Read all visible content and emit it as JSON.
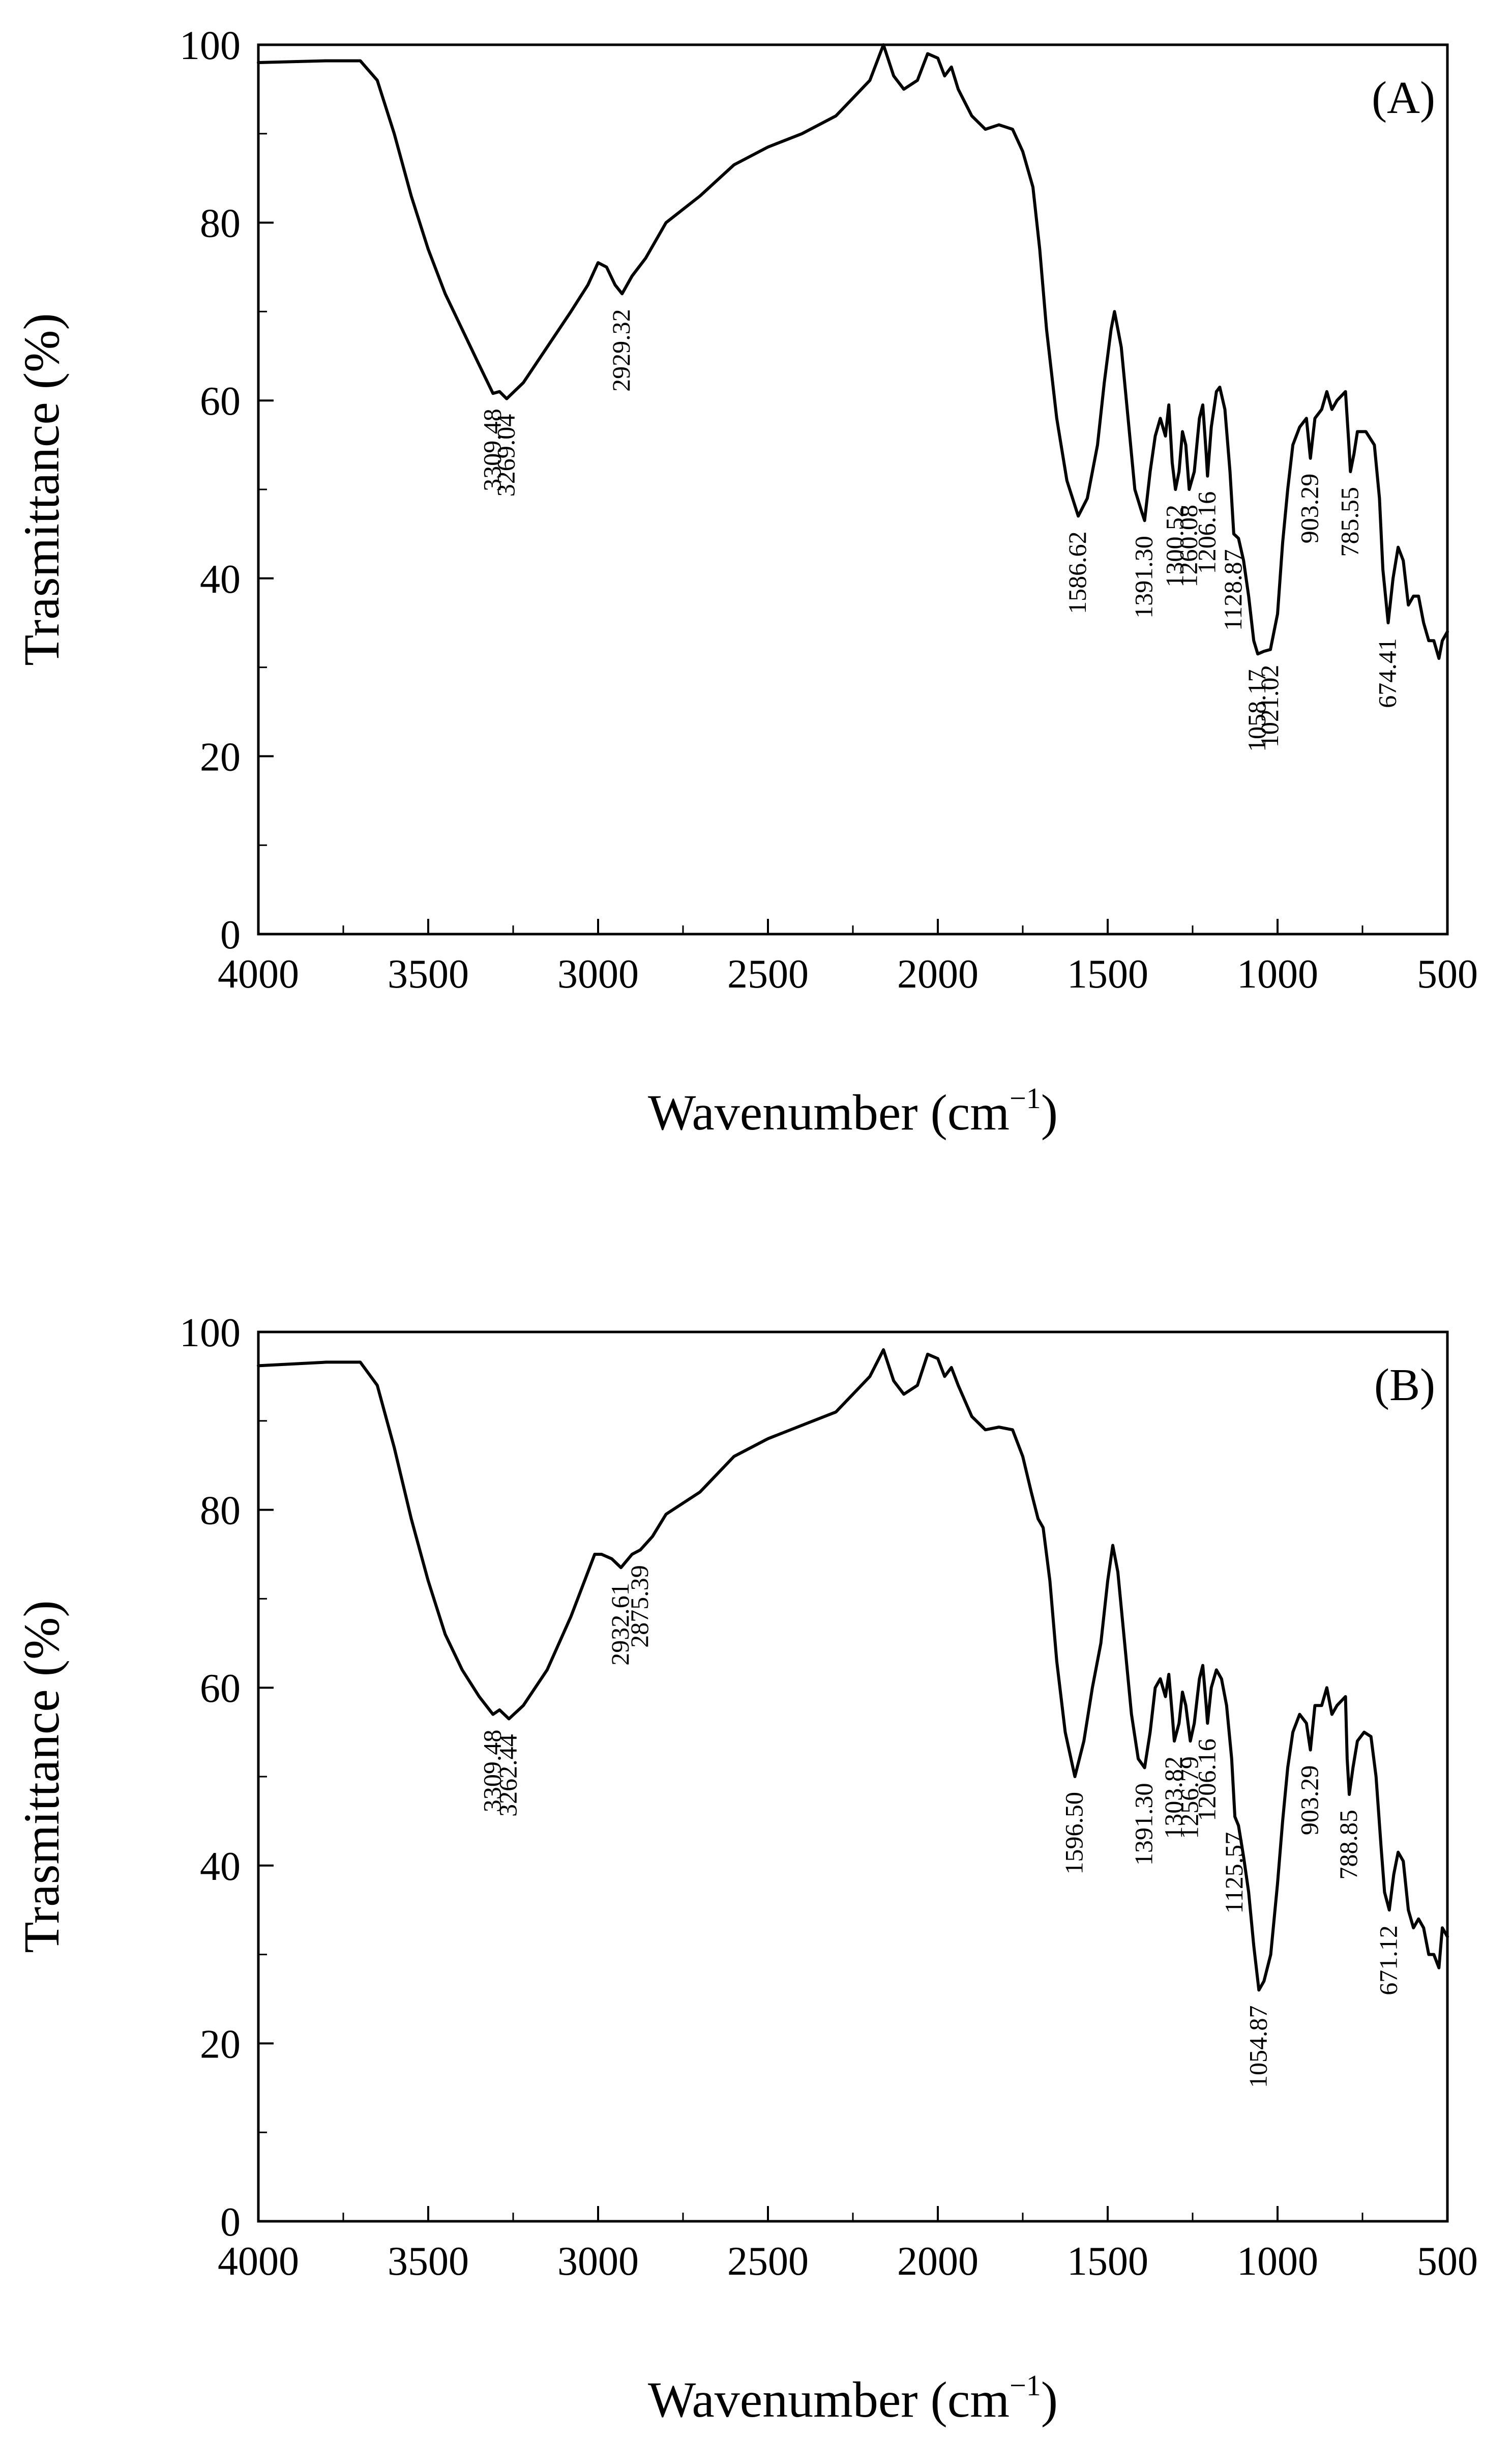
{
  "chart_data": [
    {
      "type": "line",
      "panel_label": "(A)",
      "xlabel": "Wavenumber (cm",
      "xlabel_sup": "−1",
      "xlabel_close": ")",
      "ylabel": "Trasmittance (%)",
      "xlim": [
        4000,
        500
      ],
      "ylim": [
        0,
        100
      ],
      "x_ticks": [
        "4000",
        "3500",
        "3000",
        "2500",
        "2000",
        "1500",
        "1000",
        "500"
      ],
      "y_ticks": [
        "0",
        "20",
        "40",
        "60",
        "80",
        "100"
      ],
      "series": [
        {
          "name": "(A)",
          "points": [
            [
              4000,
              98
            ],
            [
              3800,
              98.2
            ],
            [
              3700,
              98.2
            ],
            [
              3650,
              96
            ],
            [
              3600,
              90
            ],
            [
              3550,
              83
            ],
            [
              3500,
              77
            ],
            [
              3450,
              72
            ],
            [
              3400,
              68
            ],
            [
              3350,
              64
            ],
            [
              3309.48,
              60.8
            ],
            [
              3290,
              61
            ],
            [
              3269.04,
              60.2
            ],
            [
              3220,
              62
            ],
            [
              3150,
              66
            ],
            [
              3080,
              70
            ],
            [
              3030,
              73
            ],
            [
              3000,
              75.5
            ],
            [
              2975,
              75
            ],
            [
              2950,
              73
            ],
            [
              2929.32,
              72
            ],
            [
              2900,
              74
            ],
            [
              2860,
              76
            ],
            [
              2800,
              80
            ],
            [
              2700,
              83
            ],
            [
              2600,
              86.5
            ],
            [
              2500,
              88.5
            ],
            [
              2400,
              90
            ],
            [
              2300,
              92
            ],
            [
              2250,
              94
            ],
            [
              2200,
              96
            ],
            [
              2160,
              100
            ],
            [
              2130,
              96.5
            ],
            [
              2100,
              95
            ],
            [
              2060,
              96
            ],
            [
              2030,
              99
            ],
            [
              2000,
              98.5
            ],
            [
              1980,
              96.5
            ],
            [
              1960,
              97.5
            ],
            [
              1940,
              95
            ],
            [
              1900,
              92
            ],
            [
              1860,
              90.5
            ],
            [
              1820,
              91
            ],
            [
              1780,
              90.5
            ],
            [
              1750,
              88
            ],
            [
              1720,
              84
            ],
            [
              1700,
              77
            ],
            [
              1680,
              68
            ],
            [
              1650,
              58
            ],
            [
              1620,
              51
            ],
            [
              1586.62,
              47
            ],
            [
              1560,
              49
            ],
            [
              1530,
              55
            ],
            [
              1510,
              62
            ],
            [
              1490,
              68
            ],
            [
              1480,
              70
            ],
            [
              1460,
              66
            ],
            [
              1440,
              58
            ],
            [
              1420,
              50
            ],
            [
              1400,
              47.5
            ],
            [
              1391.3,
              46.5
            ],
            [
              1375,
              52
            ],
            [
              1360,
              56
            ],
            [
              1345,
              58
            ],
            [
              1330,
              56
            ],
            [
              1320,
              59.5
            ],
            [
              1310,
              53
            ],
            [
              1300.52,
              50
            ],
            [
              1290,
              52
            ],
            [
              1280,
              56.5
            ],
            [
              1270,
              55
            ],
            [
              1260.08,
              50
            ],
            [
              1245,
              52
            ],
            [
              1230,
              58
            ],
            [
              1220,
              59.5
            ],
            [
              1210,
              54
            ],
            [
              1206.16,
              51.5
            ],
            [
              1195,
              57
            ],
            [
              1180,
              61
            ],
            [
              1170,
              61.5
            ],
            [
              1155,
              59
            ],
            [
              1140,
              52
            ],
            [
              1128.87,
              45
            ],
            [
              1115,
              44.5
            ],
            [
              1100,
              42
            ],
            [
              1085,
              38
            ],
            [
              1070,
              33
            ],
            [
              1058.17,
              31.5
            ],
            [
              1040,
              31.8
            ],
            [
              1021.02,
              32
            ],
            [
              1000,
              36
            ],
            [
              985,
              44
            ],
            [
              970,
              50
            ],
            [
              955,
              55
            ],
            [
              935,
              57
            ],
            [
              915,
              58
            ],
            [
              903.29,
              53.5
            ],
            [
              890,
              58
            ],
            [
              870,
              59
            ],
            [
              855,
              61
            ],
            [
              840,
              59
            ],
            [
              825,
              60
            ],
            [
              800,
              61
            ],
            [
              790,
              55
            ],
            [
              785.55,
              52
            ],
            [
              775,
              54
            ],
            [
              765,
              56.5
            ],
            [
              740,
              56.5
            ],
            [
              715,
              55
            ],
            [
              700,
              49
            ],
            [
              690,
              41
            ],
            [
              674.41,
              35
            ],
            [
              660,
              40
            ],
            [
              645,
              43.5
            ],
            [
              630,
              42
            ],
            [
              615,
              37
            ],
            [
              600,
              38
            ],
            [
              585,
              38
            ],
            [
              570,
              35
            ],
            [
              555,
              33
            ],
            [
              540,
              33
            ],
            [
              525,
              31
            ],
            [
              515,
              33
            ],
            [
              500,
              34
            ]
          ]
        }
      ],
      "annotations": [
        "3309.48",
        "3269.04",
        "2929.32",
        "1586.62",
        "1391.30",
        "1300.52",
        "1260.08",
        "1206.16",
        "1128.87",
        "1058.17",
        "1021.02",
        "903.29",
        "785.55",
        "674.41"
      ]
    },
    {
      "type": "line",
      "panel_label": "(B)",
      "xlabel": "Wavenumber (cm",
      "xlabel_sup": "−1",
      "xlabel_close": ")",
      "ylabel": "Trasmittance (%)",
      "xlim": [
        4000,
        500
      ],
      "ylim": [
        0,
        100
      ],
      "x_ticks": [
        "4000",
        "3500",
        "3000",
        "2500",
        "2000",
        "1500",
        "1000",
        "500"
      ],
      "y_ticks": [
        "0",
        "20",
        "40",
        "60",
        "80",
        "100"
      ],
      "series": [
        {
          "name": "(B)",
          "points": [
            [
              4000,
              96.2
            ],
            [
              3800,
              96.6
            ],
            [
              3700,
              96.6
            ],
            [
              3650,
              94
            ],
            [
              3600,
              87
            ],
            [
              3550,
              79
            ],
            [
              3500,
              72
            ],
            [
              3450,
              66
            ],
            [
              3400,
              62
            ],
            [
              3350,
              59
            ],
            [
              3309.48,
              57
            ],
            [
              3290,
              57.5
            ],
            [
              3262.44,
              56.5
            ],
            [
              3220,
              58
            ],
            [
              3150,
              62
            ],
            [
              3080,
              68
            ],
            [
              3040,
              72
            ],
            [
              3010,
              75
            ],
            [
              2990,
              75
            ],
            [
              2960,
              74.5
            ],
            [
              2932.61,
              73.5
            ],
            [
              2900,
              75
            ],
            [
              2875.39,
              75.5
            ],
            [
              2840,
              77
            ],
            [
              2800,
              79.5
            ],
            [
              2700,
              82
            ],
            [
              2600,
              86
            ],
            [
              2500,
              88
            ],
            [
              2400,
              89.5
            ],
            [
              2300,
              91
            ],
            [
              2250,
              93
            ],
            [
              2200,
              95
            ],
            [
              2160,
              98
            ],
            [
              2130,
              94.5
            ],
            [
              2100,
              93
            ],
            [
              2060,
              94
            ],
            [
              2030,
              97.5
            ],
            [
              2000,
              97
            ],
            [
              1980,
              95
            ],
            [
              1960,
              96
            ],
            [
              1940,
              94
            ],
            [
              1900,
              90.5
            ],
            [
              1860,
              89
            ],
            [
              1820,
              89.3
            ],
            [
              1780,
              89
            ],
            [
              1750,
              86
            ],
            [
              1725,
              82
            ],
            [
              1705,
              79
            ],
            [
              1690,
              78
            ],
            [
              1670,
              72
            ],
            [
              1650,
              63
            ],
            [
              1625,
              55
            ],
            [
              1596.5,
              50
            ],
            [
              1570,
              54
            ],
            [
              1545,
              60
            ],
            [
              1520,
              65
            ],
            [
              1500,
              72
            ],
            [
              1485,
              76
            ],
            [
              1470,
              73
            ],
            [
              1450,
              65
            ],
            [
              1430,
              57
            ],
            [
              1410,
              52
            ],
            [
              1391.3,
              51
            ],
            [
              1375,
              55
            ],
            [
              1360,
              60
            ],
            [
              1345,
              61
            ],
            [
              1330,
              59
            ],
            [
              1320,
              61.5
            ],
            [
              1310,
              57
            ],
            [
              1303.82,
              54
            ],
            [
              1290,
              56
            ],
            [
              1280,
              59.5
            ],
            [
              1270,
              58
            ],
            [
              1256.79,
              54
            ],
            [
              1245,
              56
            ],
            [
              1230,
              61
            ],
            [
              1220,
              62.5
            ],
            [
              1210,
              58
            ],
            [
              1206.16,
              56
            ],
            [
              1195,
              60
            ],
            [
              1180,
              62
            ],
            [
              1165,
              61
            ],
            [
              1150,
              58
            ],
            [
              1135,
              52
            ],
            [
              1125.57,
              45.5
            ],
            [
              1115,
              44.5
            ],
            [
              1100,
              41
            ],
            [
              1085,
              37
            ],
            [
              1070,
              31
            ],
            [
              1054.87,
              26
            ],
            [
              1040,
              27
            ],
            [
              1020,
              30
            ],
            [
              1000,
              38
            ],
            [
              985,
              45
            ],
            [
              970,
              51
            ],
            [
              955,
              55
            ],
            [
              935,
              57
            ],
            [
              915,
              56
            ],
            [
              903.29,
              53
            ],
            [
              890,
              58
            ],
            [
              870,
              58
            ],
            [
              855,
              60
            ],
            [
              840,
              57
            ],
            [
              825,
              58
            ],
            [
              800,
              59
            ],
            [
              795,
              52
            ],
            [
              788.85,
              48
            ],
            [
              778,
              51
            ],
            [
              765,
              54
            ],
            [
              745,
              55
            ],
            [
              725,
              54.5
            ],
            [
              710,
              50
            ],
            [
              695,
              42
            ],
            [
              685,
              37
            ],
            [
              671.12,
              35
            ],
            [
              658,
              39
            ],
            [
              645,
              41.5
            ],
            [
              630,
              40.5
            ],
            [
              615,
              35
            ],
            [
              600,
              33
            ],
            [
              585,
              34
            ],
            [
              570,
              33
            ],
            [
              555,
              30
            ],
            [
              540,
              30
            ],
            [
              525,
              28.5
            ],
            [
              515,
              33
            ],
            [
              500,
              32
            ]
          ]
        }
      ],
      "annotations": [
        "3309.48",
        "3262.44",
        "2932.61",
        "2875.39",
        "1596.50",
        "1391.30",
        "1303.82",
        "1256.79",
        "1206.16",
        "1125.57",
        "1054.87",
        "903.29",
        "788.85",
        "671.12"
      ]
    }
  ]
}
